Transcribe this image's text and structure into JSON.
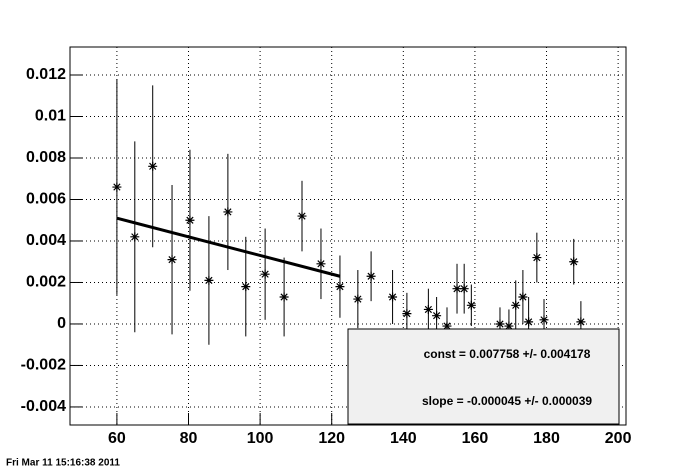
{
  "chart_data": {
    "type": "scatter",
    "series": [
      {
        "color": "#000000",
        "x": [
          60,
          65,
          70,
          75.4,
          80.4,
          85.7,
          91,
          96,
          101.4,
          106.7,
          111.7,
          117,
          122.3,
          127.3,
          131,
          137,
          141,
          147,
          149.3,
          152.2,
          155,
          157,
          159,
          167,
          169.5,
          171.4,
          173.4,
          175,
          177.3,
          179.3,
          187.6,
          189.6
        ],
        "values": [
          0.0066,
          0.0042,
          0.0076,
          0.0031,
          0.005,
          0.0021,
          0.0054,
          0.0018,
          0.0024,
          0.0013,
          0.0052,
          0.0029,
          0.0018,
          0.0012,
          0.0023,
          0.0013,
          0.0005,
          0.0007,
          0.0004,
          -0.0001,
          0.0017,
          0.0017,
          0.0009,
          0.0,
          -0.0001,
          0.0009,
          0.0013,
          0.0001,
          0.0032,
          0.0002,
          0.003,
          0.0001
        ],
        "errors": [
          0.0052,
          0.0046,
          0.0039,
          0.0036,
          0.0034,
          0.0031,
          0.0028,
          0.0024,
          0.0022,
          0.0019,
          0.0017,
          0.0017,
          0.0015,
          0.0014,
          0.0012,
          0.0013,
          0.001,
          0.001,
          0.0009,
          0.0009,
          0.0012,
          0.0012,
          0.001,
          0.0008,
          0.0008,
          0.0012,
          0.0013,
          0.0012,
          0.0012,
          0.001,
          0.0011,
          0.001
        ]
      }
    ],
    "fit": {
      "x": [
        60,
        122.3
      ],
      "y": [
        0.0051,
        0.0023
      ]
    },
    "stats": [
      "const = 0.007758 +/- 0.004178",
      "slope = -0.000045 +/- 0.000039"
    ],
    "xlim": [
      46.9,
      202.2
    ],
    "ylim": [
      -0.00487,
      0.01335
    ],
    "xticks": [
      60,
      80,
      100,
      120,
      140,
      160,
      180,
      200
    ],
    "yticks": [
      -0.004,
      -0.002,
      0,
      0.002,
      0.004,
      0.006,
      0.008,
      0.01,
      0.012
    ],
    "grid": true,
    "footer": "Fri Mar 11 15:16:38 2011"
  }
}
